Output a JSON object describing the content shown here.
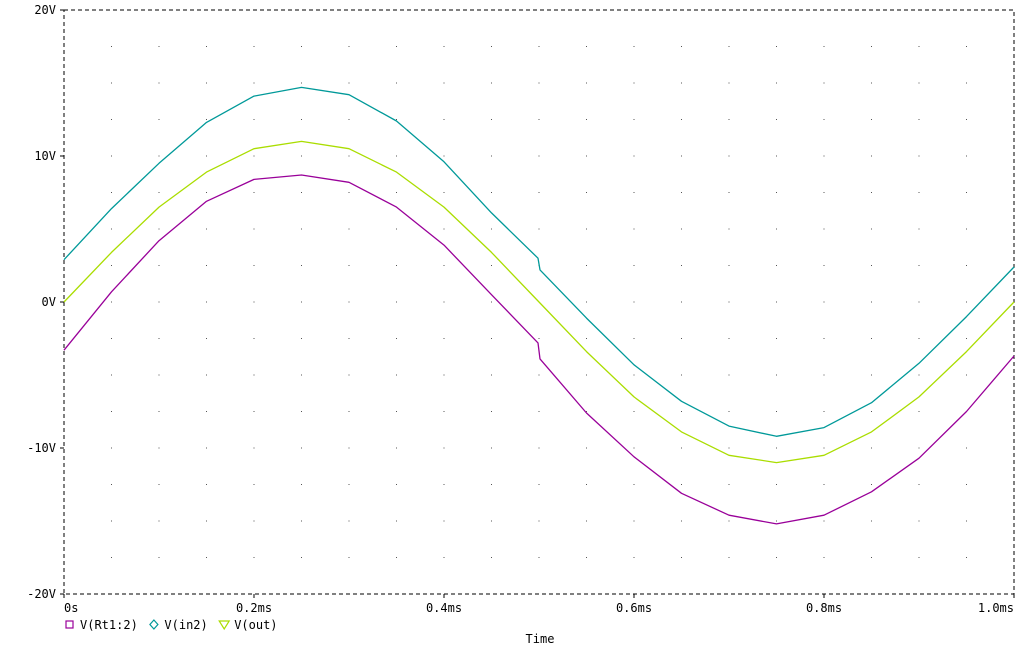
{
  "chart_data": {
    "type": "line",
    "xlabel": "Time",
    "ylabel": "",
    "xlim": [
      0,
      1.0
    ],
    "ylim": [
      -20,
      20
    ],
    "x_tick_values": [
      0,
      0.2,
      0.4,
      0.6,
      0.8,
      1.0
    ],
    "x_tick_labels": [
      "0s",
      "0.2ms",
      "0.4ms",
      "0.6ms",
      "0.8ms",
      "1.0ms"
    ],
    "y_tick_values": [
      20,
      10,
      0,
      -10,
      -20
    ],
    "y_tick_labels": [
      "20V",
      "10V",
      "0V",
      "-10V",
      "-20V"
    ],
    "grid": true,
    "legend_position": "bottom-left",
    "series": [
      {
        "name": "V(Rt1:2)",
        "color": "#990099",
        "marker": "square",
        "x": [
          0,
          0.05,
          0.1,
          0.15,
          0.2,
          0.25,
          0.3,
          0.35,
          0.4,
          0.45,
          0.499,
          0.501,
          0.55,
          0.6,
          0.65,
          0.7,
          0.75,
          0.8,
          0.85,
          0.9,
          0.95,
          1.0
        ],
        "values": [
          -3.3,
          0.7,
          4.2,
          6.9,
          8.4,
          8.7,
          8.2,
          6.5,
          3.9,
          0.5,
          -2.8,
          -3.9,
          -7.6,
          -10.6,
          -13.1,
          -14.6,
          -15.2,
          -14.6,
          -13.0,
          -10.7,
          -7.5,
          -3.7
        ]
      },
      {
        "name": "V(in2)",
        "color": "#009999",
        "marker": "diamond",
        "x": [
          0,
          0.05,
          0.1,
          0.15,
          0.2,
          0.25,
          0.3,
          0.35,
          0.4,
          0.45,
          0.499,
          0.501,
          0.55,
          0.6,
          0.65,
          0.7,
          0.75,
          0.8,
          0.85,
          0.9,
          0.95,
          1.0
        ],
        "values": [
          2.9,
          6.4,
          9.5,
          12.3,
          14.1,
          14.7,
          14.2,
          12.4,
          9.6,
          6.1,
          3.0,
          2.2,
          -1.1,
          -4.3,
          -6.8,
          -8.5,
          -9.2,
          -8.6,
          -6.9,
          -4.2,
          -1.0,
          2.4
        ]
      },
      {
        "name": "V(out)",
        "color": "#aadd00",
        "marker": "triangle",
        "x": [
          0,
          0.05,
          0.1,
          0.15,
          0.2,
          0.25,
          0.3,
          0.35,
          0.4,
          0.45,
          0.5,
          0.55,
          0.6,
          0.65,
          0.7,
          0.75,
          0.8,
          0.85,
          0.9,
          0.95,
          1.0
        ],
        "values": [
          0.0,
          3.4,
          6.5,
          8.9,
          10.5,
          11.0,
          10.5,
          8.9,
          6.5,
          3.4,
          0.0,
          -3.4,
          -6.5,
          -8.9,
          -10.5,
          -11.0,
          -10.5,
          -8.9,
          -6.5,
          -3.4,
          0.0
        ]
      }
    ]
  }
}
